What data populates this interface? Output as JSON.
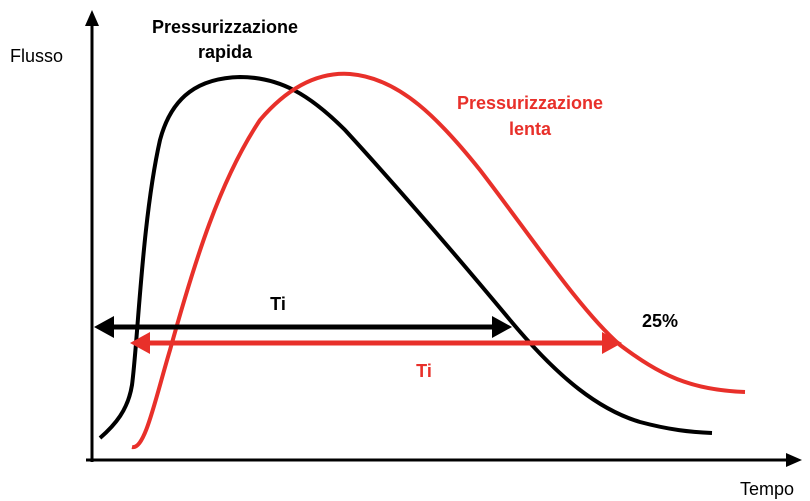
{
  "axes": {
    "y_label": "Flusso",
    "x_label": "Tempo"
  },
  "curves": [
    {
      "label_lines": [
        "Pressurizzazione",
        "rapida"
      ]
    },
    {
      "label_lines": [
        "Pressurizzazione",
        "lenta"
      ]
    }
  ],
  "intervals": [
    {
      "label": "Ti"
    },
    {
      "label": "Ti"
    }
  ],
  "threshold_label": "25%"
}
